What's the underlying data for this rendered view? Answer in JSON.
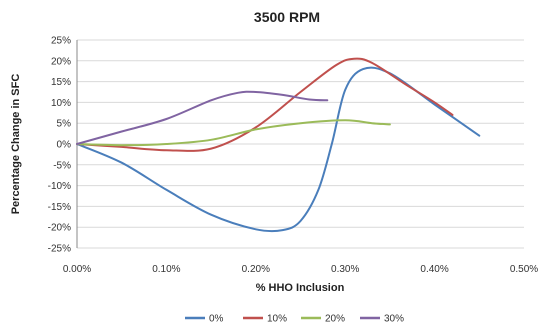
{
  "chart_data": {
    "type": "line",
    "title": "3500 RPM",
    "xlabel": "% HHO Inclusion",
    "ylabel": "Percentage Change in SFC",
    "xlim": [
      0,
      0.5
    ],
    "ylim": [
      -25,
      25
    ],
    "x_ticks": [
      "0.00%",
      "0.10%",
      "0.20%",
      "0.30%",
      "0.40%",
      "0.50%"
    ],
    "y_ticks": [
      "25%",
      "20%",
      "15%",
      "10%",
      "5%",
      "0%",
      "-5%",
      "-10%",
      "-15%",
      "-20%",
      "-25%"
    ],
    "grid": "horizontal",
    "legend_position": "bottom",
    "series": [
      {
        "name": "0%",
        "color": "#4a7ebb",
        "points": [
          [
            0,
            0
          ],
          [
            0.05,
            -4.5
          ],
          [
            0.1,
            -11
          ],
          [
            0.15,
            -17
          ],
          [
            0.2,
            -20.5
          ],
          [
            0.23,
            -20.7
          ],
          [
            0.25,
            -18.5
          ],
          [
            0.27,
            -11
          ],
          [
            0.285,
            0
          ],
          [
            0.3,
            13
          ],
          [
            0.32,
            18
          ],
          [
            0.35,
            17
          ],
          [
            0.4,
            9.5
          ],
          [
            0.43,
            5
          ],
          [
            0.45,
            2
          ]
        ]
      },
      {
        "name": "10%",
        "color": "#c0504d",
        "points": [
          [
            0,
            0
          ],
          [
            0.05,
            -0.7
          ],
          [
            0.1,
            -1.5
          ],
          [
            0.15,
            -1.1
          ],
          [
            0.2,
            4
          ],
          [
            0.25,
            12.5
          ],
          [
            0.29,
            19
          ],
          [
            0.31,
            20.5
          ],
          [
            0.33,
            19.5
          ],
          [
            0.37,
            14
          ],
          [
            0.4,
            10
          ],
          [
            0.42,
            7
          ]
        ]
      },
      {
        "name": "20%",
        "color": "#9bbb59",
        "points": [
          [
            0,
            0
          ],
          [
            0.05,
            -0.3
          ],
          [
            0.1,
            0
          ],
          [
            0.15,
            1
          ],
          [
            0.2,
            3.5
          ],
          [
            0.25,
            5
          ],
          [
            0.3,
            5.7
          ],
          [
            0.33,
            5
          ],
          [
            0.35,
            4.7
          ]
        ]
      },
      {
        "name": "30%",
        "color": "#8064a2",
        "points": [
          [
            0,
            0
          ],
          [
            0.05,
            3
          ],
          [
            0.1,
            6
          ],
          [
            0.15,
            10.5
          ],
          [
            0.18,
            12.3
          ],
          [
            0.2,
            12.5
          ],
          [
            0.23,
            11.8
          ],
          [
            0.26,
            10.7
          ],
          [
            0.28,
            10.5
          ]
        ]
      }
    ]
  }
}
